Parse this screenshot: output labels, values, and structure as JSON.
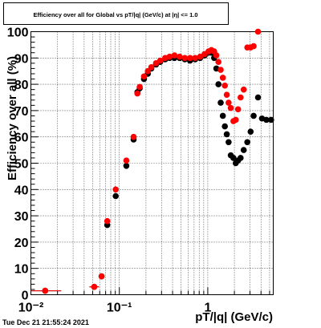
{
  "chart_data": {
    "type": "scatter",
    "title": "Efficiency over all for Global vs pT/|q| (GeV/c) at |η| <= 1.0",
    "xlabel": "pT/|q| (GeV/c)",
    "ylabel": "Efficiency over all (%)",
    "x_scale": "log",
    "xlim": [
      0.01,
      5.5
    ],
    "ylim": [
      0,
      100
    ],
    "grid": true,
    "x_tick_labels": [
      "10⁻²",
      "10⁻¹",
      "1"
    ],
    "y_tick_labels": [
      "0",
      "10",
      "20",
      "30",
      "40",
      "50",
      "60",
      "70",
      "80",
      "90",
      "100"
    ],
    "timestamp": "Tue Dec 21 21:55:24 2021",
    "series": [
      {
        "name": "",
        "color": "#000000",
        "points": [
          [
            0.0145,
            1.5
          ],
          [
            0.052,
            3.0
          ],
          [
            0.063,
            7.0
          ],
          [
            0.073,
            26.5
          ],
          [
            0.091,
            37.5
          ],
          [
            0.12,
            49.0
          ],
          [
            0.145,
            59.0
          ],
          [
            0.16,
            77.0
          ],
          [
            0.17,
            78.5
          ],
          [
            0.19,
            82.0
          ],
          [
            0.21,
            84.0
          ],
          [
            0.23,
            86.0
          ],
          [
            0.26,
            87.5
          ],
          [
            0.29,
            88.5
          ],
          [
            0.33,
            89.5
          ],
          [
            0.37,
            90.0
          ],
          [
            0.42,
            90.0
          ],
          [
            0.48,
            90.0
          ],
          [
            0.55,
            89.5
          ],
          [
            0.63,
            89.0
          ],
          [
            0.72,
            89.5
          ],
          [
            0.82,
            90.0
          ],
          [
            0.92,
            91.0
          ],
          [
            1.02,
            92.0
          ],
          [
            1.1,
            92.0
          ],
          [
            1.18,
            90.0
          ],
          [
            1.25,
            86.0
          ],
          [
            1.32,
            80.0
          ],
          [
            1.4,
            73.0
          ],
          [
            1.48,
            68.0
          ],
          [
            1.56,
            64.0
          ],
          [
            1.64,
            61.0
          ],
          [
            1.72,
            58.0
          ],
          [
            1.82,
            53.0
          ],
          [
            1.95,
            52.0
          ],
          [
            2.07,
            50.0
          ],
          [
            2.2,
            51.0
          ],
          [
            2.35,
            52.0
          ],
          [
            2.55,
            55.0
          ],
          [
            2.8,
            58.0
          ],
          [
            3.05,
            62.0
          ],
          [
            3.3,
            68.0
          ],
          [
            3.7,
            75.0
          ],
          [
            4.1,
            67.0
          ],
          [
            4.6,
            66.5
          ],
          [
            5.2,
            66.5
          ]
        ]
      },
      {
        "name": "",
        "color": "#ff0000",
        "points": [
          [
            0.0145,
            1.5
          ],
          [
            0.052,
            3.0
          ],
          [
            0.063,
            7.0
          ],
          [
            0.073,
            28.0
          ],
          [
            0.091,
            40.0
          ],
          [
            0.12,
            51.0
          ],
          [
            0.145,
            60.0
          ],
          [
            0.16,
            76.5
          ],
          [
            0.17,
            79.0
          ],
          [
            0.19,
            83.0
          ],
          [
            0.21,
            85.0
          ],
          [
            0.23,
            86.5
          ],
          [
            0.26,
            88.0
          ],
          [
            0.29,
            89.0
          ],
          [
            0.33,
            90.0
          ],
          [
            0.37,
            90.5
          ],
          [
            0.42,
            91.0
          ],
          [
            0.48,
            90.5
          ],
          [
            0.55,
            90.0
          ],
          [
            0.63,
            90.0
          ],
          [
            0.72,
            90.0
          ],
          [
            0.82,
            90.5
          ],
          [
            0.92,
            91.5
          ],
          [
            1.02,
            92.5
          ],
          [
            1.1,
            93.0
          ],
          [
            1.18,
            92.5
          ],
          [
            1.25,
            91.0
          ],
          [
            1.32,
            88.5
          ],
          [
            1.4,
            85.5
          ],
          [
            1.48,
            82.5
          ],
          [
            1.56,
            79.5
          ],
          [
            1.64,
            76.0
          ],
          [
            1.72,
            73.0
          ],
          [
            1.82,
            71.0
          ],
          [
            1.95,
            66.0
          ],
          [
            2.07,
            66.5
          ],
          [
            2.2,
            70.5
          ],
          [
            2.35,
            75.0
          ],
          [
            2.55,
            78.0
          ],
          [
            2.8,
            94.0
          ],
          [
            3.05,
            94.0
          ],
          [
            3.3,
            94.5
          ],
          [
            3.7,
            100.0
          ]
        ]
      }
    ]
  }
}
